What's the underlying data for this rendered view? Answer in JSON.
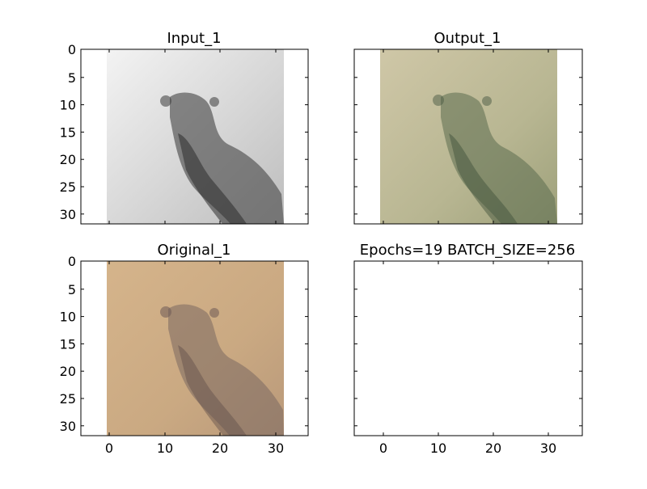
{
  "figure": {
    "background": "#ffffff"
  },
  "chart_data": [
    {
      "type": "image",
      "title": "Input_1",
      "xlim": [
        -5,
        36
      ],
      "ylim": [
        31.5,
        -0.5
      ],
      "xticks": [
        0,
        10,
        20,
        30
      ],
      "yticks": [
        0,
        5,
        10,
        15,
        20,
        25,
        30
      ],
      "show_x_tick_labels": false,
      "show_y_tick_labels": true,
      "image": {
        "kind": "grayscale",
        "colormap": "gray",
        "extent": [
          -0.5,
          31.5,
          31.5,
          -0.5
        ],
        "description": "32x32 grayscale photo patch (light background, darker subject)"
      }
    },
    {
      "type": "image",
      "title": "Output_1",
      "xlim": [
        -5,
        36
      ],
      "ylim": [
        31.5,
        -0.5
      ],
      "xticks": [
        0,
        10,
        20,
        30
      ],
      "yticks": [
        0,
        5,
        10,
        15,
        20,
        25,
        30
      ],
      "show_x_tick_labels": false,
      "show_y_tick_labels": false,
      "image": {
        "kind": "rgb",
        "extent": [
          -0.5,
          31.5,
          31.5,
          -0.5
        ],
        "description": "32x32 colorized reconstruction (greenish/beige tones)"
      }
    },
    {
      "type": "image",
      "title": "Original_1",
      "xlim": [
        -5,
        36
      ],
      "ylim": [
        31.5,
        -0.5
      ],
      "xticks": [
        0,
        10,
        20,
        30
      ],
      "yticks": [
        0,
        5,
        10,
        15,
        20,
        25,
        30
      ],
      "show_x_tick_labels": true,
      "show_y_tick_labels": true,
      "image": {
        "kind": "rgb",
        "extent": [
          -0.5,
          31.5,
          31.5,
          -0.5
        ],
        "description": "32x32 original color image (tan/brown tones)"
      }
    },
    {
      "type": "image",
      "title": "Epochs=19 BATCH_SIZE=256",
      "xlim": [
        -5,
        36
      ],
      "ylim": [
        31.5,
        -0.5
      ],
      "xticks": [
        0,
        10,
        20,
        30
      ],
      "yticks": [
        0,
        5,
        10,
        15,
        20,
        25,
        30
      ],
      "show_x_tick_labels": true,
      "show_y_tick_labels": false,
      "image": null
    }
  ]
}
